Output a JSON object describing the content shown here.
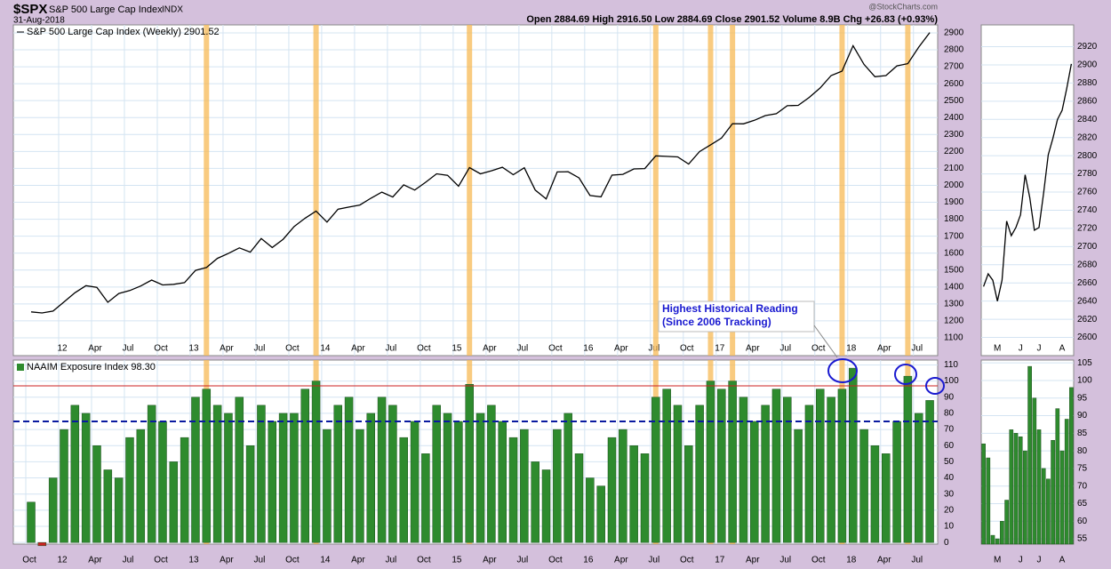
{
  "header": {
    "symbol": "$SPX",
    "name": "S&P 500 Large Cap Index",
    "exchange": "INDX",
    "date": "31-Aug-2018",
    "quote": "Open 2884.69  High 2916.50  Low 2884.69  Close 2901.52  Volume 8.9B  Chg +26.83 (+0.93%)",
    "credit": "@StockCharts.com"
  },
  "chart_data": [
    {
      "type": "line",
      "legend": "S&P 500 Large Cap Index (Weekly) 2901.52",
      "color": "#000000",
      "x": [
        "2011-10",
        "2011-11",
        "2011-12",
        "2012-01",
        "2012-02",
        "2012-03",
        "2012-04",
        "2012-05",
        "2012-06",
        "2012-07",
        "2012-08",
        "2012-09",
        "2012-10",
        "2012-11",
        "2012-12",
        "2013-01",
        "2013-02",
        "2013-03",
        "2013-04",
        "2013-05",
        "2013-06",
        "2013-07",
        "2013-08",
        "2013-09",
        "2013-10",
        "2013-11",
        "2013-12",
        "2014-01",
        "2014-02",
        "2014-03",
        "2014-04",
        "2014-05",
        "2014-06",
        "2014-07",
        "2014-08",
        "2014-09",
        "2014-10",
        "2014-11",
        "2014-12",
        "2015-01",
        "2015-02",
        "2015-03",
        "2015-04",
        "2015-05",
        "2015-06",
        "2015-07",
        "2015-08",
        "2015-09",
        "2015-10",
        "2015-11",
        "2015-12",
        "2016-01",
        "2016-02",
        "2016-03",
        "2016-04",
        "2016-05",
        "2016-06",
        "2016-07",
        "2016-08",
        "2016-09",
        "2016-10",
        "2016-11",
        "2016-12",
        "2017-01",
        "2017-02",
        "2017-03",
        "2017-04",
        "2017-05",
        "2017-06",
        "2017-07",
        "2017-08",
        "2017-09",
        "2017-10",
        "2017-11",
        "2017-12",
        "2018-01",
        "2018-02",
        "2018-03",
        "2018-04",
        "2018-05",
        "2018-06",
        "2018-07",
        "2018-08"
      ],
      "values": [
        1253,
        1247,
        1258,
        1312,
        1366,
        1408,
        1398,
        1310,
        1362,
        1379,
        1406,
        1441,
        1412,
        1416,
        1426,
        1498,
        1515,
        1569,
        1598,
        1631,
        1606,
        1686,
        1633,
        1682,
        1757,
        1806,
        1848,
        1783,
        1859,
        1872,
        1884,
        1924,
        1960,
        1931,
        2003,
        1972,
        2018,
        2068,
        2059,
        1995,
        2105,
        2068,
        2086,
        2107,
        2063,
        2104,
        1972,
        1920,
        2079,
        2080,
        2044,
        1940,
        1932,
        2060,
        2065,
        2097,
        2099,
        2174,
        2171,
        2168,
        2126,
        2199,
        2239,
        2279,
        2364,
        2363,
        2384,
        2412,
        2423,
        2470,
        2472,
        2519,
        2575,
        2648,
        2674,
        2824,
        2714,
        2641,
        2648,
        2705,
        2718,
        2816,
        2902
      ],
      "ylim": [
        995,
        2947
      ],
      "yticks": [
        1100,
        1200,
        1300,
        1400,
        1500,
        1600,
        1700,
        1800,
        1900,
        2000,
        2100,
        2200,
        2300,
        2400,
        2500,
        2600,
        2700,
        2800,
        2900
      ],
      "xticks": [
        {
          "value": "2012-01",
          "label": "12"
        },
        {
          "value": "2012-04",
          "label": "Apr"
        },
        {
          "value": "2012-07",
          "label": "Jul"
        },
        {
          "value": "2012-10",
          "label": "Oct"
        },
        {
          "value": "2013-01",
          "label": "13"
        },
        {
          "value": "2013-04",
          "label": "Apr"
        },
        {
          "value": "2013-07",
          "label": "Jul"
        },
        {
          "value": "2013-10",
          "label": "Oct"
        },
        {
          "value": "2014-01",
          "label": "14"
        },
        {
          "value": "2014-04",
          "label": "Apr"
        },
        {
          "value": "2014-07",
          "label": "Jul"
        },
        {
          "value": "2014-10",
          "label": "Oct"
        },
        {
          "value": "2015-01",
          "label": "15"
        },
        {
          "value": "2015-04",
          "label": "Apr"
        },
        {
          "value": "2015-07",
          "label": "Jul"
        },
        {
          "value": "2015-10",
          "label": "Oct"
        },
        {
          "value": "2016-01",
          "label": "16"
        },
        {
          "value": "2016-04",
          "label": "Apr"
        },
        {
          "value": "2016-07",
          "label": "Jul"
        },
        {
          "value": "2016-10",
          "label": "Oct"
        },
        {
          "value": "2017-01",
          "label": "17"
        },
        {
          "value": "2017-04",
          "label": "Apr"
        },
        {
          "value": "2017-07",
          "label": "Jul"
        },
        {
          "value": "2017-10",
          "label": "Oct"
        },
        {
          "value": "2018-01",
          "label": "18"
        },
        {
          "value": "2018-04",
          "label": "Apr"
        },
        {
          "value": "2018-07",
          "label": "Jul"
        }
      ],
      "highlight_x": [
        "2013-02",
        "2013-12",
        "2015-02",
        "2016-07",
        "2016-12",
        "2017-02",
        "2017-12",
        "2018-06"
      ],
      "grid": true
    },
    {
      "type": "bar",
      "legend": "NAAIM Exposure Index 98.30",
      "color": "#2e8b2e",
      "negative_color": "#cc2222",
      "annotation": [
        "Highest Historical Reading",
        "(Since 2006 Tracking)"
      ],
      "x": [
        "2011-10",
        "2011-11",
        "2011-12",
        "2012-01",
        "2012-02",
        "2012-03",
        "2012-04",
        "2012-05",
        "2012-06",
        "2012-07",
        "2012-08",
        "2012-09",
        "2012-10",
        "2012-11",
        "2012-12",
        "2013-01",
        "2013-02",
        "2013-03",
        "2013-04",
        "2013-05",
        "2013-06",
        "2013-07",
        "2013-08",
        "2013-09",
        "2013-10",
        "2013-11",
        "2013-12",
        "2014-01",
        "2014-02",
        "2014-03",
        "2014-04",
        "2014-05",
        "2014-06",
        "2014-07",
        "2014-08",
        "2014-09",
        "2014-10",
        "2014-11",
        "2014-12",
        "2015-01",
        "2015-02",
        "2015-03",
        "2015-04",
        "2015-05",
        "2015-06",
        "2015-07",
        "2015-08",
        "2015-09",
        "2015-10",
        "2015-11",
        "2015-12",
        "2016-01",
        "2016-02",
        "2016-03",
        "2016-04",
        "2016-05",
        "2016-06",
        "2016-07",
        "2016-08",
        "2016-09",
        "2016-10",
        "2016-11",
        "2016-12",
        "2017-01",
        "2017-02",
        "2017-03",
        "2017-04",
        "2017-05",
        "2017-06",
        "2017-07",
        "2017-08",
        "2017-09",
        "2017-10",
        "2017-11",
        "2017-12",
        "2018-01",
        "2018-02",
        "2018-03",
        "2018-04",
        "2018-05",
        "2018-06",
        "2018-07",
        "2018-08"
      ],
      "values": [
        25,
        -2,
        40,
        70,
        85,
        80,
        60,
        45,
        40,
        65,
        70,
        85,
        75,
        50,
        65,
        90,
        95,
        85,
        80,
        90,
        60,
        85,
        75,
        80,
        80,
        95,
        100,
        70,
        85,
        90,
        70,
        80,
        90,
        85,
        65,
        75,
        55,
        85,
        80,
        75,
        98,
        80,
        85,
        75,
        65,
        70,
        50,
        45,
        70,
        80,
        55,
        40,
        35,
        65,
        70,
        60,
        55,
        90,
        95,
        85,
        60,
        85,
        100,
        95,
        100,
        90,
        75,
        85,
        95,
        90,
        70,
        85,
        95,
        90,
        95,
        108,
        70,
        60,
        55,
        75,
        103,
        80,
        88
      ],
      "ylim": [
        -1,
        113
      ],
      "yticks": [
        0,
        10,
        20,
        30,
        40,
        50,
        60,
        70,
        80,
        90,
        100,
        110
      ],
      "xticks": [
        {
          "value": "2011-10",
          "label": "Oct"
        },
        {
          "value": "2012-01",
          "label": "12"
        },
        {
          "value": "2012-04",
          "label": "Apr"
        },
        {
          "value": "2012-07",
          "label": "Jul"
        },
        {
          "value": "2012-10",
          "label": "Oct"
        },
        {
          "value": "2013-01",
          "label": "13"
        },
        {
          "value": "2013-04",
          "label": "Apr"
        },
        {
          "value": "2013-07",
          "label": "Jul"
        },
        {
          "value": "2013-10",
          "label": "Oct"
        },
        {
          "value": "2014-01",
          "label": "14"
        },
        {
          "value": "2014-04",
          "label": "Apr"
        },
        {
          "value": "2014-07",
          "label": "Jul"
        },
        {
          "value": "2014-10",
          "label": "Oct"
        },
        {
          "value": "2015-01",
          "label": "15"
        },
        {
          "value": "2015-04",
          "label": "Apr"
        },
        {
          "value": "2015-07",
          "label": "Jul"
        },
        {
          "value": "2015-10",
          "label": "Oct"
        },
        {
          "value": "2016-01",
          "label": "16"
        },
        {
          "value": "2016-04",
          "label": "Apr"
        },
        {
          "value": "2016-07",
          "label": "Jul"
        },
        {
          "value": "2016-10",
          "label": "Oct"
        },
        {
          "value": "2017-01",
          "label": "17"
        },
        {
          "value": "2017-04",
          "label": "Apr"
        },
        {
          "value": "2017-07",
          "label": "Jul"
        },
        {
          "value": "2017-10",
          "label": "Oct"
        },
        {
          "value": "2018-01",
          "label": "18"
        },
        {
          "value": "2018-04",
          "label": "Apr"
        },
        {
          "value": "2018-07",
          "label": "Jul"
        }
      ],
      "highlight_x": [
        "2013-02",
        "2013-12",
        "2015-02",
        "2016-07",
        "2016-12",
        "2017-02",
        "2017-12",
        "2018-06"
      ],
      "reference_lines": [
        {
          "value": 97,
          "color": "#cc2222",
          "dash": false
        },
        {
          "value": 75,
          "color": "#0a1aa0",
          "dash": true
        }
      ],
      "grid": true
    },
    {
      "type": "line",
      "color": "#000000",
      "categories": [
        null,
        null,
        null,
        "M",
        null,
        null,
        null,
        null,
        "J",
        null,
        null,
        null,
        "J",
        null,
        null,
        null,
        null,
        "A",
        null,
        null
      ],
      "values": [
        2656,
        2670,
        2663,
        2640,
        2663,
        2728,
        2712,
        2721,
        2735,
        2779,
        2754,
        2718,
        2721,
        2759,
        2801,
        2819,
        2840,
        2850,
        2874,
        2901
      ],
      "ylim": [
        2580,
        2944
      ],
      "yticks": [
        2600,
        2620,
        2640,
        2660,
        2680,
        2700,
        2720,
        2740,
        2760,
        2780,
        2800,
        2820,
        2840,
        2860,
        2880,
        2900,
        2920
      ],
      "grid": true
    },
    {
      "type": "bar",
      "color": "#2e8b2e",
      "negative_color": "#cc2222",
      "categories": [
        null,
        null,
        null,
        "M",
        null,
        null,
        null,
        null,
        "J",
        null,
        null,
        null,
        "J",
        null,
        null,
        null,
        null,
        "A",
        null,
        null
      ],
      "values": [
        82,
        78,
        56,
        55,
        60,
        66,
        86,
        85,
        84,
        80,
        104,
        95,
        86,
        75,
        72,
        83,
        92,
        80,
        89,
        98
      ],
      "ylim": [
        53.5,
        105.8
      ],
      "yticks": [
        55,
        60,
        65,
        70,
        75,
        80,
        85,
        90,
        95,
        100,
        105
      ],
      "grid": true
    }
  ]
}
